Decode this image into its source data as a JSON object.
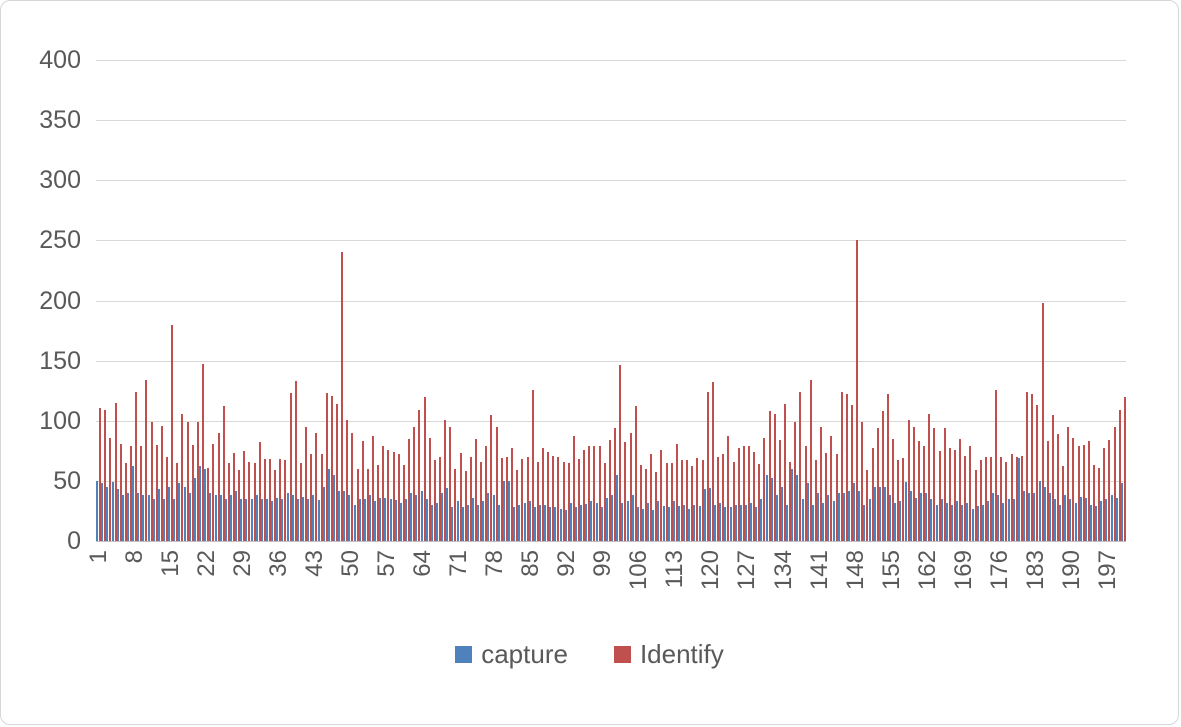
{
  "colors": {
    "capture": "#4F81BD",
    "identify": "#C0504D",
    "grid": "#D9D9D9",
    "axis": "#BFBFBF",
    "text": "#595959"
  },
  "legend": {
    "items": [
      {
        "label": "capture",
        "color": "#4F81BD"
      },
      {
        "label": "Identify",
        "color": "#C0504D"
      }
    ]
  },
  "chart_data": {
    "type": "bar",
    "title": "",
    "xlabel": "",
    "ylabel": "",
    "ylim": [
      0,
      400
    ],
    "y_ticks": [
      0,
      50,
      100,
      150,
      200,
      250,
      300,
      350,
      400
    ],
    "grid": true,
    "legend_position": "bottom",
    "categories_count": 200,
    "x_tick_step": 7,
    "x_tick_labels": [
      "1",
      "8",
      "15",
      "22",
      "29",
      "36",
      "43",
      "50",
      "57",
      "64",
      "71",
      "78",
      "85",
      "92",
      "99",
      "106",
      "113",
      "120",
      "127",
      "134",
      "141",
      "148",
      "155",
      "162",
      "169",
      "176",
      "183",
      "190",
      "197"
    ],
    "series": [
      {
        "name": "capture",
        "color": "#4F81BD",
        "values": [
          50,
          48,
          45,
          49,
          43,
          38,
          40,
          62,
          40,
          38,
          38,
          35,
          43,
          35,
          45,
          35,
          48,
          45,
          40,
          52,
          62,
          60,
          40,
          38,
          38,
          35,
          38,
          42,
          35,
          35,
          35,
          38,
          35,
          35,
          33,
          36,
          35,
          40,
          38,
          35,
          37,
          35,
          38,
          34,
          45,
          60,
          55,
          42,
          42,
          38,
          30,
          35,
          35,
          38,
          33,
          36,
          36,
          35,
          34,
          32,
          35,
          40,
          38,
          42,
          35,
          30,
          32,
          40,
          44,
          28,
          33,
          28,
          30,
          36,
          30,
          33,
          40,
          38,
          30,
          50,
          50,
          28,
          30,
          32,
          33,
          28,
          30,
          30,
          28,
          28,
          27,
          26,
          32,
          28,
          30,
          31,
          33,
          32,
          28,
          36,
          38,
          55,
          32,
          33,
          38,
          28,
          27,
          32,
          26,
          33,
          29,
          28,
          33,
          29,
          30,
          27,
          30,
          29,
          43,
          44,
          30,
          32,
          28,
          28,
          30,
          30,
          30,
          32,
          28,
          35,
          55,
          52,
          38,
          45,
          30,
          60,
          55,
          35,
          48,
          30,
          40,
          32,
          38,
          33,
          40,
          40,
          42,
          48,
          42,
          30,
          35,
          45,
          45,
          45,
          38,
          32,
          33,
          49,
          42,
          36,
          40,
          40,
          35,
          30,
          35,
          32,
          30,
          33,
          30,
          32,
          27,
          29,
          30,
          33,
          40,
          38,
          32,
          35,
          35,
          69,
          42,
          40,
          40,
          50,
          45,
          40,
          35,
          30,
          38,
          35,
          32,
          37,
          36,
          30,
          29,
          33,
          35,
          38,
          36,
          48
        ]
      },
      {
        "name": "Identify",
        "color": "#C0504D",
        "values": [
          111,
          109,
          86,
          115,
          81,
          65,
          79,
          124,
          79,
          134,
          99,
          80,
          96,
          70,
          180,
          65,
          106,
          99,
          80,
          99,
          147,
          61,
          81,
          90,
          112,
          65,
          73,
          59,
          75,
          66,
          65,
          82,
          68,
          68,
          59,
          68,
          67,
          123,
          133,
          65,
          95,
          72,
          90,
          72,
          123,
          121,
          114,
          240,
          101,
          90,
          60,
          83,
          60,
          87,
          63,
          79,
          76,
          74,
          72,
          63,
          85,
          95,
          109,
          120,
          86,
          67,
          70,
          101,
          95,
          60,
          73,
          58,
          70,
          85,
          66,
          79,
          105,
          95,
          69,
          70,
          77,
          59,
          68,
          70,
          126,
          66,
          77,
          74,
          71,
          70,
          66,
          65,
          87,
          68,
          76,
          79,
          79,
          79,
          65,
          84,
          94,
          146,
          82,
          90,
          112,
          63,
          60,
          72,
          57,
          76,
          65,
          65,
          81,
          67,
          67,
          62,
          69,
          67,
          124,
          132,
          70,
          72,
          87,
          66,
          77,
          79,
          79,
          74,
          64,
          86,
          108,
          106,
          84,
          114,
          66,
          99,
          124,
          79,
          134,
          67,
          95,
          73,
          87,
          72,
          124,
          122,
          113,
          250,
          99,
          59,
          77,
          94,
          108,
          122,
          85,
          67,
          69,
          101,
          95,
          83,
          79,
          106,
          94,
          75,
          94,
          77,
          76,
          85,
          71,
          79,
          59,
          67,
          70,
          70,
          126,
          70,
          66,
          72,
          70,
          71,
          124,
          122,
          113,
          198,
          83,
          105,
          89,
          62,
          95,
          86,
          79,
          80,
          83,
          63,
          61,
          77,
          84,
          95,
          109,
          120
        ]
      }
    ]
  }
}
